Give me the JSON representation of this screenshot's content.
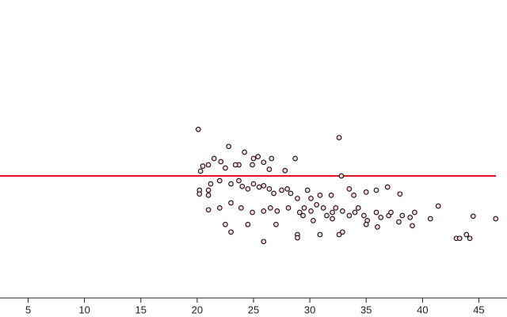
{
  "chart_data": {
    "type": "scatter",
    "x": [
      20.1,
      22.8,
      32.6,
      24.2,
      28.7,
      21.5,
      22.1,
      21,
      20.5,
      20.3,
      23.7,
      25,
      25.4,
      26.6,
      25.9,
      27.8,
      26.4,
      24.9,
      32.8,
      23.4,
      22.5,
      20.2,
      20.2,
      21,
      21,
      21.2,
      22,
      23,
      23.7,
      24,
      24.5,
      25,
      25.5,
      25.9,
      26.4,
      26.8,
      27.5,
      28,
      28.3,
      28.9,
      29.8,
      30.1,
      30.9,
      31.9,
      33.5,
      33.9,
      35,
      35.9,
      36.9,
      38,
      21,
      22,
      23,
      23.9,
      24.9,
      25.9,
      26.5,
      27.1,
      28.1,
      29.1,
      29.5,
      30.1,
      30.6,
      31.2,
      31.5,
      32,
      32.3,
      32.9,
      33.5,
      34,
      34.3,
      34.8,
      35.1,
      35.9,
      36.3,
      37,
      37.2,
      37.9,
      38.2,
      38.9,
      39.1,
      39.3,
      40.7,
      41.4,
      44.5,
      46.5,
      22.5,
      24.5,
      27,
      28.9,
      28.9,
      23,
      25.9,
      30.9,
      32.6,
      32.9,
      36,
      35,
      43,
      43.3,
      43.9,
      44.2,
      30.3,
      29.4,
      32
    ],
    "values": [
      26.6,
      23.9,
      25.3,
      23,
      22,
      22,
      21.5,
      21,
      20.8,
      20,
      21,
      22,
      22.3,
      22,
      21.4,
      20.1,
      20.3,
      21,
      19.25,
      21,
      20.5,
      17,
      16.4,
      17,
      16.2,
      18,
      18.5,
      18,
      18.5,
      17.6,
      17.2,
      18,
      17.5,
      17.7,
      17.2,
      16.5,
      17,
      17.2,
      16.5,
      15.7,
      17,
      15.7,
      16.2,
      16.2,
      17.2,
      16.2,
      16.7,
      17,
      17.5,
      16.4,
      13.9,
      14.2,
      15,
      14.2,
      13.5,
      13.7,
      14.2,
      13.7,
      14.2,
      13.5,
      14.2,
      13.7,
      14.7,
      14.2,
      13,
      13.5,
      14.2,
      13.7,
      13,
      13.5,
      14.2,
      13,
      12.2,
      13.5,
      12.7,
      13,
      13.5,
      12,
      13,
      12.7,
      11.4,
      13.5,
      12.5,
      14.5,
      12.9,
      12.5,
      11.6,
      11.6,
      11.6,
      10,
      9.5,
      10.4,
      8.9,
      10,
      10,
      10.4,
      11.2,
      11.6,
      9.4,
      9.4,
      10,
      9.4,
      12.2,
      13,
      12.5
    ],
    "color": "#f9d4d8",
    "edgecolor": "#111111",
    "hline": {
      "value": 19.25,
      "color": "#e8141b"
    },
    "xlim": [
      2.5,
      47.5
    ],
    "ylim": [
      0,
      47
    ],
    "xticks": [
      5,
      10,
      15,
      20,
      25,
      30,
      35,
      40,
      45
    ]
  }
}
